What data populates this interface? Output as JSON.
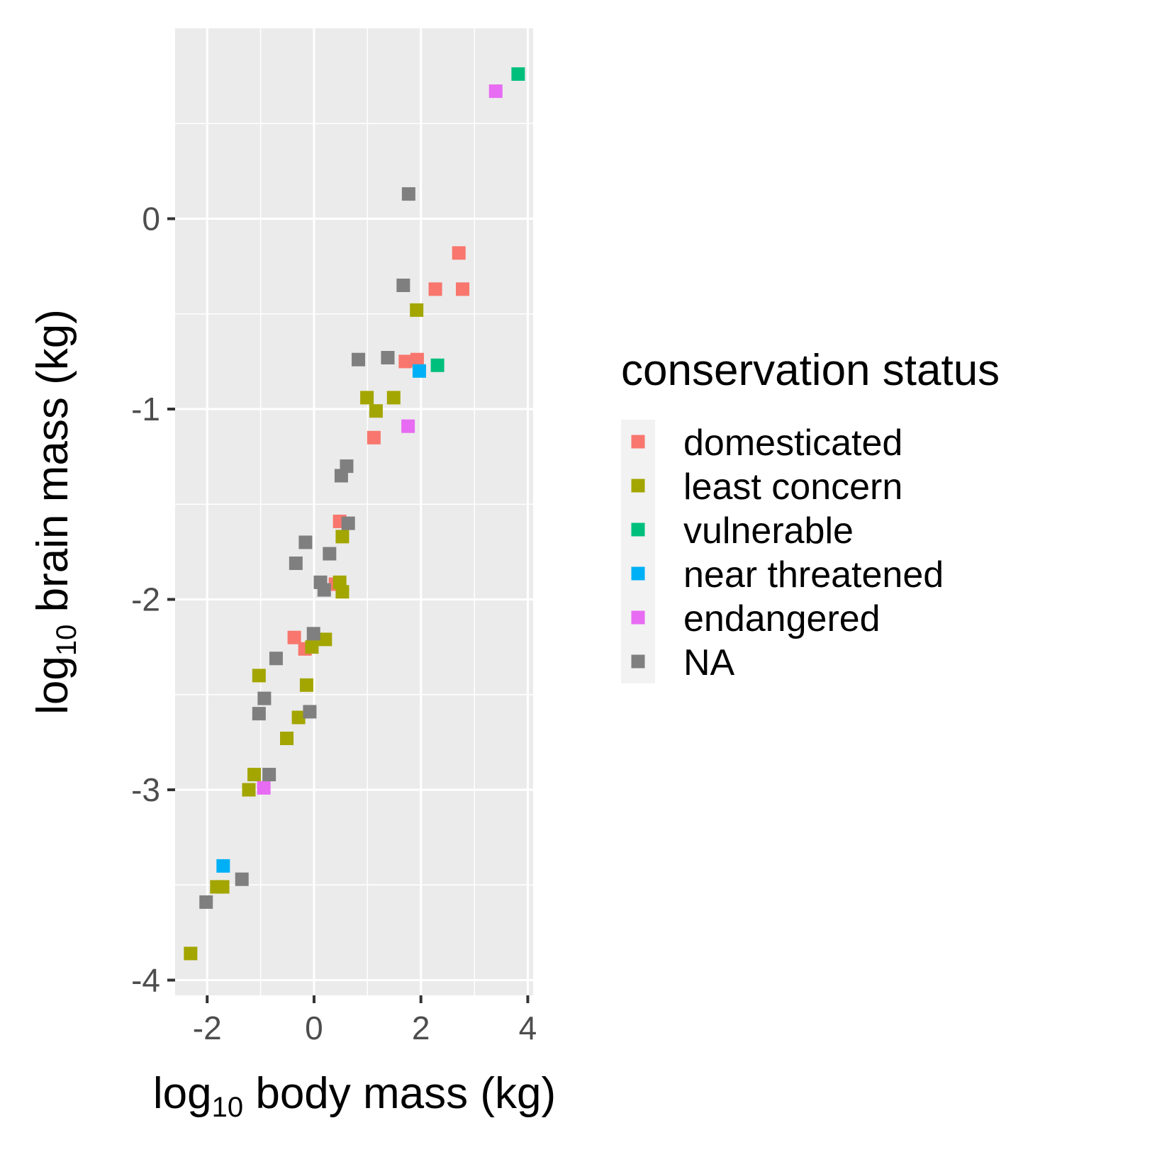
{
  "chart_data": {
    "type": "scatter",
    "xlabel": {
      "base": "log",
      "sub": "10",
      "rest": " body mass (kg)"
    },
    "ylabel": {
      "base": "log",
      "sub": "10",
      "rest": " brain mass (kg)"
    },
    "xlim": [
      -2.6,
      4.1
    ],
    "ylim": [
      -4.08,
      1.0
    ],
    "x_ticks": [
      -2,
      0,
      2,
      4
    ],
    "y_ticks": [
      -4,
      -3,
      -2,
      -1,
      0
    ],
    "x_tick_labels": [
      "-2",
      "0",
      "2",
      "4"
    ],
    "y_tick_labels": [
      "-4",
      "-3",
      "-2",
      "-1",
      "0"
    ],
    "grid": true,
    "legend": {
      "title": "conservation status",
      "placement": "right"
    },
    "series": [
      {
        "name": "domesticated",
        "color": "#F8766D",
        "points": [
          [
            2.71,
            -0.18
          ],
          [
            2.27,
            -0.37
          ],
          [
            2.78,
            -0.37
          ],
          [
            1.93,
            -0.74
          ],
          [
            1.71,
            -0.75
          ],
          [
            1.12,
            -1.15
          ],
          [
            0.48,
            -1.59
          ],
          [
            0.4,
            -1.92
          ],
          [
            -0.37,
            -2.2
          ],
          [
            -0.17,
            -2.26
          ]
        ]
      },
      {
        "name": "least concern",
        "color": "#A3A500",
        "points": [
          [
            1.92,
            -0.48
          ],
          [
            0.99,
            -0.94
          ],
          [
            1.49,
            -0.94
          ],
          [
            1.16,
            -1.01
          ],
          [
            0.53,
            -1.67
          ],
          [
            0.48,
            -1.91
          ],
          [
            0.53,
            -1.96
          ],
          [
            0.21,
            -2.21
          ],
          [
            -0.04,
            -2.25
          ],
          [
            -1.03,
            -2.4
          ],
          [
            -0.14,
            -2.45
          ],
          [
            -0.29,
            -2.62
          ],
          [
            -0.51,
            -2.73
          ],
          [
            -1.12,
            -2.92
          ],
          [
            -1.22,
            -3.0
          ],
          [
            -1.82,
            -3.51
          ],
          [
            -1.71,
            -3.51
          ],
          [
            -2.31,
            -3.86
          ]
        ]
      },
      {
        "name": "vulnerable",
        "color": "#00BF7D",
        "points": [
          [
            3.82,
            0.76
          ],
          [
            2.31,
            -0.77
          ]
        ]
      },
      {
        "name": "near threatened",
        "color": "#00B0F6",
        "points": [
          [
            1.97,
            -0.8
          ],
          [
            -1.7,
            -3.4
          ]
        ]
      },
      {
        "name": "endangered",
        "color": "#E76BF3",
        "points": [
          [
            3.4,
            0.67
          ],
          [
            1.76,
            -1.09
          ],
          [
            -0.94,
            -2.99
          ]
        ]
      },
      {
        "name": "NA",
        "color": "#7F7F7F",
        "points": [
          [
            1.77,
            0.13
          ],
          [
            1.67,
            -0.35
          ],
          [
            0.83,
            -0.74
          ],
          [
            1.38,
            -0.73
          ],
          [
            0.61,
            -1.3
          ],
          [
            0.51,
            -1.35
          ],
          [
            0.64,
            -1.6
          ],
          [
            -0.16,
            -1.7
          ],
          [
            0.29,
            -1.76
          ],
          [
            -0.34,
            -1.81
          ],
          [
            0.12,
            -1.91
          ],
          [
            0.19,
            -1.95
          ],
          [
            -0.01,
            -2.18
          ],
          [
            -0.71,
            -2.31
          ],
          [
            -0.93,
            -2.52
          ],
          [
            -1.03,
            -2.6
          ],
          [
            -0.08,
            -2.59
          ],
          [
            -0.84,
            -2.92
          ],
          [
            -1.35,
            -3.47
          ],
          [
            -2.02,
            -3.59
          ]
        ]
      }
    ]
  }
}
